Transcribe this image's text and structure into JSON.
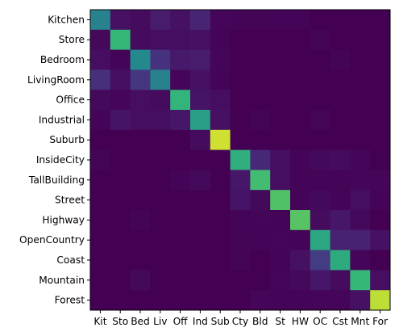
{
  "chart_data": {
    "type": "heatmap",
    "title": "",
    "xlabel": "",
    "ylabel": "",
    "colormap": "viridis",
    "vmin": 0,
    "vmax": 1,
    "rows": [
      "Kitchen",
      "Store",
      "Bedroom",
      "LivingRoom",
      "Office",
      "Industrial",
      "Suburb",
      "InsideCity",
      "TallBuilding",
      "Street",
      "Highway",
      "OpenCountry",
      "Coast",
      "Mountain",
      "Forest"
    ],
    "columns": [
      "Kit",
      "Sto",
      "Bed",
      "Liv",
      "Off",
      "Ind",
      "Sub",
      "Cty",
      "Bld",
      "St",
      "HW",
      "OC",
      "Cst",
      "Mnt",
      "For"
    ],
    "values": [
      [
        0.55,
        0.06,
        0.04,
        0.1,
        0.06,
        0.13,
        0.02,
        0.01,
        0.01,
        0.01,
        0.01,
        0.0,
        0.0,
        0.0,
        0.0
      ],
      [
        0.03,
        0.75,
        0.04,
        0.05,
        0.05,
        0.06,
        0.01,
        0.0,
        0.0,
        0.0,
        0.0,
        0.01,
        0.0,
        0.0,
        0.0
      ],
      [
        0.05,
        0.01,
        0.59,
        0.18,
        0.09,
        0.1,
        0.02,
        0.0,
        0.0,
        0.0,
        0.0,
        0.0,
        0.01,
        0.0,
        0.0
      ],
      [
        0.17,
        0.05,
        0.2,
        0.55,
        0.02,
        0.06,
        0.01,
        0.0,
        0.0,
        0.0,
        0.0,
        0.0,
        0.0,
        0.0,
        0.0
      ],
      [
        0.03,
        0.02,
        0.05,
        0.04,
        0.74,
        0.07,
        0.05,
        0.0,
        0.0,
        0.0,
        0.0,
        0.0,
        0.0,
        0.0,
        0.0
      ],
      [
        0.01,
        0.07,
        0.05,
        0.05,
        0.08,
        0.67,
        0.06,
        0.0,
        0.01,
        0.0,
        0.0,
        0.02,
        0.0,
        0.0,
        0.0
      ],
      [
        0.0,
        0.0,
        0.0,
        0.0,
        0.0,
        0.04,
        0.95,
        0.0,
        0.0,
        0.0,
        0.0,
        0.0,
        0.0,
        0.0,
        0.0
      ],
      [
        0.01,
        0.0,
        0.0,
        0.0,
        0.0,
        0.0,
        0.0,
        0.72,
        0.14,
        0.05,
        0.01,
        0.03,
        0.04,
        0.02,
        0.0
      ],
      [
        0.0,
        0.0,
        0.0,
        0.0,
        0.01,
        0.03,
        0.0,
        0.08,
        0.77,
        0.05,
        0.01,
        0.01,
        0.01,
        0.02,
        0.02
      ],
      [
        0.0,
        0.0,
        0.0,
        0.0,
        0.0,
        0.0,
        0.0,
        0.07,
        0.03,
        0.79,
        0.01,
        0.03,
        0.01,
        0.05,
        0.01
      ],
      [
        0.0,
        0.0,
        0.01,
        0.0,
        0.0,
        0.0,
        0.0,
        0.01,
        0.02,
        0.01,
        0.8,
        0.04,
        0.08,
        0.03,
        0.0
      ],
      [
        0.0,
        0.0,
        0.0,
        0.0,
        0.0,
        0.0,
        0.0,
        0.01,
        0.01,
        0.02,
        0.01,
        0.7,
        0.12,
        0.12,
        0.06
      ],
      [
        0.0,
        0.0,
        0.0,
        0.0,
        0.0,
        0.0,
        0.0,
        0.01,
        0.0,
        0.01,
        0.06,
        0.22,
        0.71,
        0.02,
        0.0
      ],
      [
        0.0,
        0.0,
        0.03,
        0.0,
        0.0,
        0.0,
        0.0,
        0.0,
        0.0,
        0.02,
        0.03,
        0.08,
        0.04,
        0.75,
        0.05
      ],
      [
        0.0,
        0.0,
        0.0,
        0.0,
        0.0,
        0.0,
        0.0,
        0.0,
        0.02,
        0.01,
        0.01,
        0.02,
        0.02,
        0.06,
        0.93
      ]
    ]
  }
}
